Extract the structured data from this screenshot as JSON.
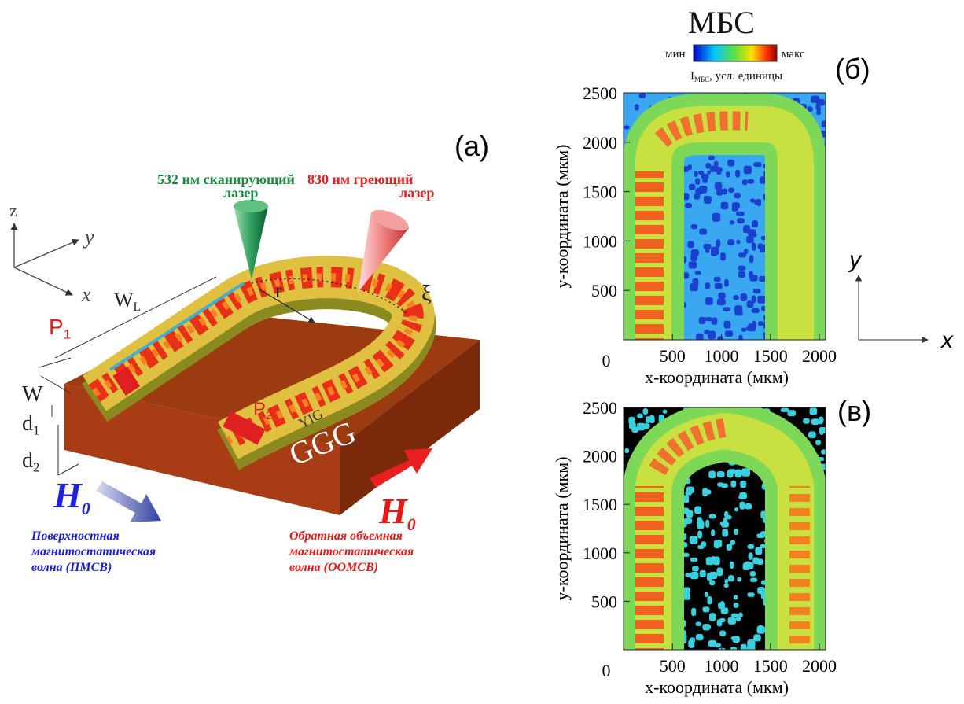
{
  "panel_a": {
    "label": "(а)",
    "laser_scan": [
      "532 нм сканирующий",
      "лазер"
    ],
    "laser_heat": [
      "830 нм греющий",
      "лазер"
    ],
    "axes": {
      "z": "z",
      "y": "y",
      "x": "x"
    },
    "W_L": {
      "main": "W",
      "sub": "L"
    },
    "P1": {
      "main": "P",
      "sub": "1"
    },
    "P2": {
      "main": "P",
      "sub": "2"
    },
    "r": "r",
    "xi": "ξ",
    "W": "W",
    "d1": {
      "main": "d",
      "sub": "1"
    },
    "d2": {
      "main": "d",
      "sub": "2"
    },
    "yig": "YIG",
    "ggg": "GGG",
    "H0_surface": {
      "main": "H",
      "sub": "0"
    },
    "surface_wave": [
      "Поверхностная",
      "магнитостатическая",
      "волна (ПМСВ)"
    ],
    "H0_backward": {
      "main": "H",
      "sub": "0"
    },
    "backward_wave": [
      "Обратная объемная",
      "магнитостатическая",
      "волна (ООМСВ)"
    ]
  },
  "panel_b": {
    "title": "МБС",
    "colorbar_min": "мин",
    "colorbar_max": "макс",
    "unit": {
      "main": "I",
      "sub": "МБС",
      "rest": ", усл. единицы"
    },
    "label": "(б)",
    "y_axis_label": "y-координата (мкм)",
    "x_axis_label": "x-координата (мкм)",
    "origin": 0,
    "yticks": [
      500,
      1000,
      1500,
      2000,
      2500
    ],
    "xticks": [
      500,
      1000,
      1500,
      2000
    ],
    "side_axes": {
      "y": "y",
      "x": "x"
    }
  },
  "panel_c": {
    "label": "(в)",
    "y_axis_label": "y-координата (мкм)",
    "x_axis_label": "x-координата (мкм)",
    "origin": 0,
    "yticks": [
      500,
      1000,
      1500,
      2000,
      2500
    ],
    "xticks": [
      500,
      1000,
      1500,
      2000
    ]
  }
}
